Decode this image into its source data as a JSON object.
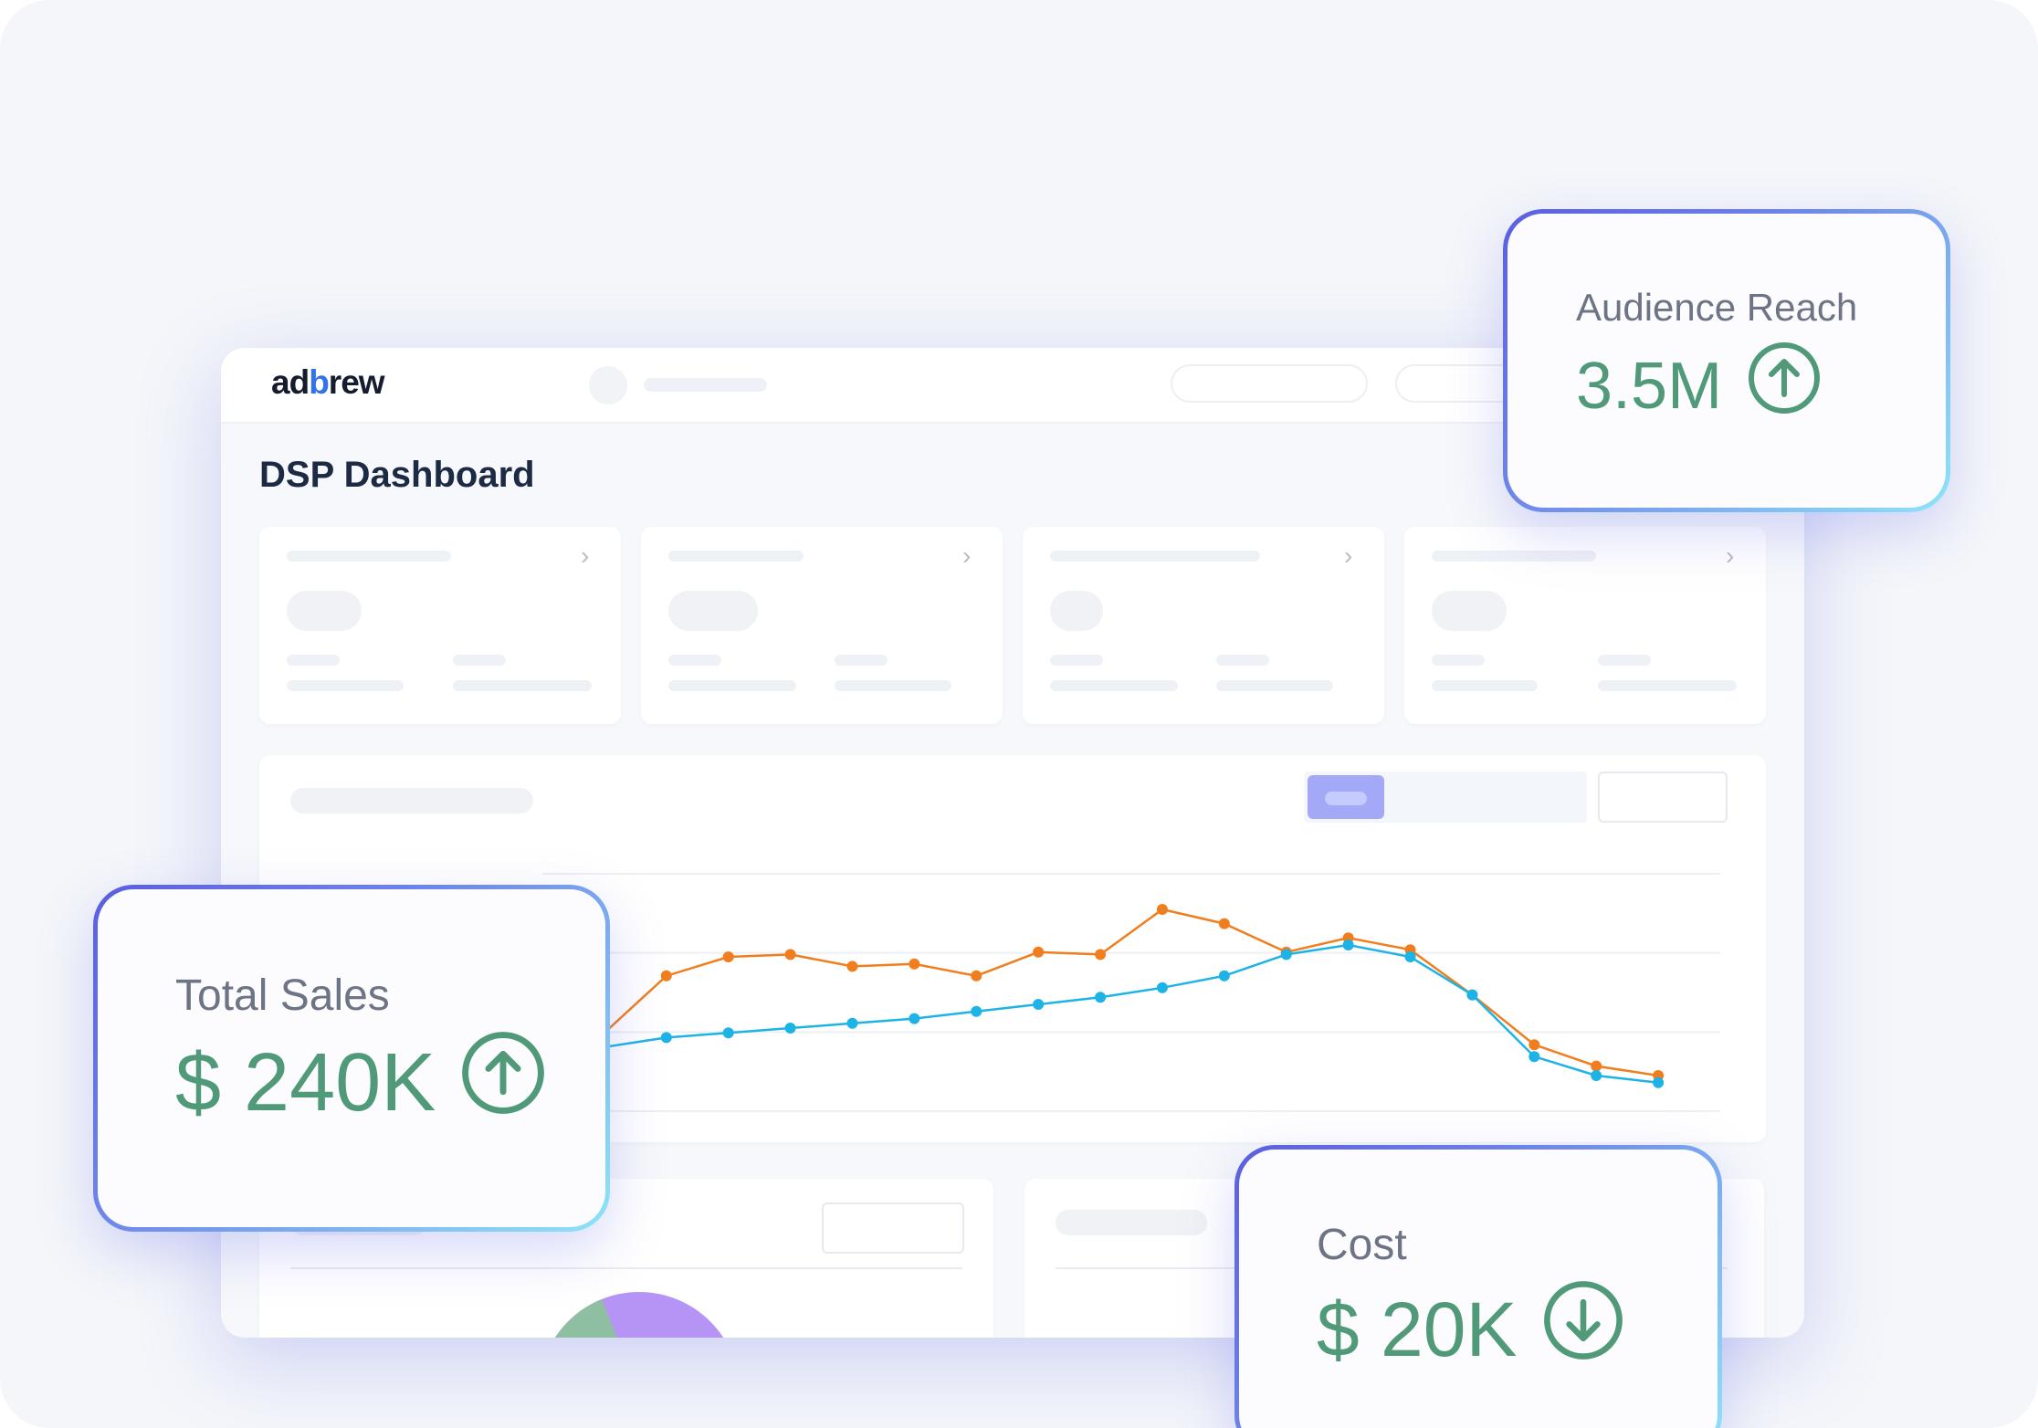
{
  "app": {
    "logo_text_a": "ad",
    "logo_text_b": "b",
    "logo_text_c": "rew",
    "page_title": "DSP Dashboard"
  },
  "overlays": {
    "audience": {
      "label": "Audience Reach",
      "value": "3.5M",
      "trend": "up"
    },
    "sales": {
      "label": "Total Sales",
      "value": "$ 240K",
      "trend": "up"
    },
    "cost": {
      "label": "Cost",
      "value": "$ 20K",
      "trend": "down"
    }
  },
  "colors": {
    "accent_green": "#509a79",
    "series_orange": "#f07e1e",
    "series_blue": "#1eb3e6",
    "pie_purple": "#b594f5",
    "pie_green": "#8fbfa3",
    "pie_orange": "#f2a05a"
  },
  "chart_data": {
    "type": "line",
    "x": [
      1,
      2,
      3,
      4,
      5,
      6,
      7,
      8,
      9,
      10,
      11,
      12,
      13,
      14,
      15,
      16,
      17,
      18,
      19,
      20
    ],
    "series": [
      {
        "values": [
          47,
          33,
          57,
          65,
          66,
          61,
          62,
          57,
          67,
          66,
          85,
          79,
          67,
          73,
          68,
          49,
          28,
          19,
          15,
          null
        ]
      },
      {
        "values": [
          22,
          27,
          31,
          33,
          35,
          37,
          39,
          42,
          45,
          48,
          52,
          57,
          66,
          70,
          65,
          49,
          23,
          15,
          12,
          null
        ]
      }
    ],
    "ylim": [
      0,
      100
    ],
    "grid": true
  }
}
